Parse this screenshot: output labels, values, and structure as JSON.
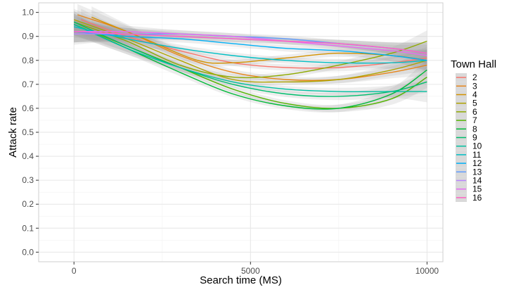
{
  "chart_data": {
    "type": "line",
    "xlabel": "Search time (MS)",
    "ylabel": "Attack rate",
    "xlim": [
      -1000,
      10450
    ],
    "ylim": [
      -0.04,
      1.04
    ],
    "x_ticks": [
      0,
      5000,
      10000
    ],
    "x_tick_labels": [
      "0",
      "5000",
      "10000"
    ],
    "y_ticks": [
      0.0,
      0.1,
      0.2,
      0.3,
      0.4,
      0.5,
      0.6,
      0.7,
      0.8,
      0.9,
      1.0
    ],
    "y_tick_labels": [
      "0.0",
      "0.1",
      "0.2",
      "0.3",
      "0.4",
      "0.5",
      "0.6",
      "0.7",
      "0.8",
      "0.9",
      "1.0"
    ],
    "grid": true,
    "confidence_band": true,
    "legend": {
      "title": "Town Hall",
      "placement": "right"
    },
    "series": [
      {
        "name": "2",
        "color": "#F8766D",
        "x": [
          200,
          1500,
          3000,
          4500,
          6000,
          7500,
          9000,
          10000
        ],
        "y": [
          0.97,
          0.9,
          0.84,
          0.79,
          0.77,
          0.77,
          0.79,
          0.81
        ]
      },
      {
        "name": "3",
        "color": "#E7861B",
        "x": [
          100,
          1500,
          3000,
          4500,
          6000,
          7500,
          9000,
          10000
        ],
        "y": [
          0.99,
          0.92,
          0.82,
          0.75,
          0.72,
          0.72,
          0.75,
          0.78
        ]
      },
      {
        "name": "4",
        "color": "#D39200",
        "x": [
          500,
          2000,
          3500,
          4500,
          6000,
          7500,
          9000,
          10000
        ],
        "y": [
          0.98,
          0.89,
          0.8,
          0.79,
          0.81,
          0.83,
          0.82,
          0.8
        ]
      },
      {
        "name": "5",
        "color": "#AEA200",
        "x": [
          0,
          1500,
          3000,
          4500,
          6000,
          7500,
          9000,
          10000
        ],
        "y": [
          0.97,
          0.89,
          0.8,
          0.72,
          0.71,
          0.72,
          0.76,
          0.8
        ]
      },
      {
        "name": "6",
        "color": "#8FAA00",
        "x": [
          0,
          1500,
          3000,
          4500,
          6000,
          7500,
          9000,
          10000
        ],
        "y": [
          0.96,
          0.88,
          0.78,
          0.73,
          0.74,
          0.78,
          0.83,
          0.88
        ]
      },
      {
        "name": "7",
        "color": "#53B400",
        "x": [
          0,
          1500,
          3000,
          4500,
          6000,
          7500,
          9000,
          10000
        ],
        "y": [
          0.95,
          0.86,
          0.77,
          0.68,
          0.62,
          0.6,
          0.64,
          0.73
        ]
      },
      {
        "name": "8",
        "color": "#00BA38",
        "x": [
          0,
          1500,
          3000,
          4500,
          6000,
          7500,
          9000,
          10000
        ],
        "y": [
          0.95,
          0.85,
          0.75,
          0.66,
          0.61,
          0.6,
          0.66,
          0.76
        ]
      },
      {
        "name": "9",
        "color": "#00BE6D",
        "x": [
          0,
          1500,
          3000,
          4500,
          6000,
          7500,
          9000,
          10000
        ],
        "y": [
          0.96,
          0.86,
          0.77,
          0.7,
          0.66,
          0.65,
          0.67,
          0.71
        ]
      },
      {
        "name": "10",
        "color": "#00C0A0",
        "x": [
          0,
          1500,
          3000,
          4500,
          6000,
          7500,
          9000,
          10000
        ],
        "y": [
          0.95,
          0.85,
          0.77,
          0.71,
          0.68,
          0.67,
          0.67,
          0.67
        ]
      },
      {
        "name": "11",
        "color": "#00BFC4",
        "x": [
          0,
          1500,
          3000,
          4500,
          6000,
          7500,
          9000,
          10000
        ],
        "y": [
          0.94,
          0.89,
          0.85,
          0.82,
          0.8,
          0.79,
          0.79,
          0.8
        ]
      },
      {
        "name": "12",
        "color": "#00B0F6",
        "x": [
          0,
          1500,
          3000,
          4500,
          6000,
          7500,
          9000,
          10000
        ],
        "y": [
          0.92,
          0.9,
          0.89,
          0.87,
          0.85,
          0.84,
          0.82,
          0.8
        ]
      },
      {
        "name": "13",
        "color": "#619CFF",
        "x": [
          0,
          1500,
          3000,
          4500,
          6000,
          7500,
          9000,
          10000
        ],
        "y": [
          0.92,
          0.91,
          0.91,
          0.9,
          0.89,
          0.87,
          0.85,
          0.83
        ]
      },
      {
        "name": "14",
        "color": "#B983FF",
        "x": [
          0,
          1500,
          3000,
          4500,
          6000,
          7500,
          9000,
          10000
        ],
        "y": [
          0.91,
          0.91,
          0.9,
          0.89,
          0.88,
          0.87,
          0.85,
          0.83
        ]
      },
      {
        "name": "15",
        "color": "#E76BF3",
        "x": [
          0,
          1500,
          3000,
          4500,
          6000,
          7500,
          9000,
          10000
        ],
        "y": [
          0.92,
          0.92,
          0.91,
          0.9,
          0.88,
          0.86,
          0.84,
          0.82
        ]
      },
      {
        "name": "16",
        "color": "#FF61C3",
        "x": [
          0,
          1500,
          3000,
          4500,
          6000,
          7500,
          9000,
          10000
        ],
        "y": [
          0.92,
          0.91,
          0.9,
          0.89,
          0.88,
          0.87,
          0.85,
          0.83
        ]
      }
    ]
  }
}
